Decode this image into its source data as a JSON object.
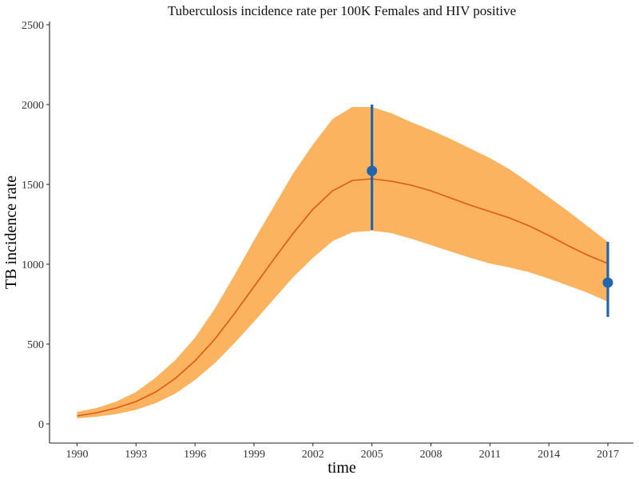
{
  "chart_data": {
    "type": "line",
    "title": "Tuberculosis incidence rate per 100K Females and HIV positive",
    "xlabel": "time",
    "ylabel": "TB incidence rate",
    "xlim": [
      1988.6,
      2018.3
    ],
    "ylim": [
      -120,
      2520
    ],
    "x_ticks": [
      "1990",
      "1993",
      "1996",
      "1999",
      "2002",
      "2005",
      "2008",
      "2011",
      "2014",
      "2017"
    ],
    "y_ticks": [
      "0",
      "500",
      "1000",
      "1500",
      "2000",
      "2500"
    ],
    "grid": false,
    "legend": "none",
    "series": [
      {
        "kind": "band",
        "color": "#fbb360",
        "x": [
          1990,
          1991,
          1992,
          1993,
          1994,
          1995,
          1996,
          1997,
          1998,
          1999,
          2000,
          2001,
          2002,
          2003,
          2004,
          2005,
          2006,
          2007,
          2008,
          2009,
          2010,
          2011,
          2012,
          2013,
          2014,
          2015,
          2016,
          2017
        ],
        "lower": [
          35,
          45,
          62,
          88,
          130,
          190,
          275,
          380,
          505,
          640,
          780,
          920,
          1040,
          1145,
          1200,
          1210,
          1195,
          1160,
          1120,
          1080,
          1040,
          1005,
          980,
          950,
          910,
          865,
          820,
          765
        ],
        "upper": [
          75,
          100,
          140,
          200,
          290,
          400,
          540,
          720,
          930,
          1150,
          1360,
          1570,
          1750,
          1910,
          1985,
          1985,
          1945,
          1890,
          1840,
          1785,
          1725,
          1665,
          1595,
          1510,
          1420,
          1330,
          1235,
          1140
        ]
      },
      {
        "kind": "line",
        "color": "#d95a1a",
        "x": [
          1990,
          1991,
          1992,
          1993,
          1994,
          1995,
          1996,
          1997,
          1998,
          1999,
          2000,
          2001,
          2002,
          2003,
          2004,
          2005,
          2006,
          2007,
          2008,
          2009,
          2010,
          2011,
          2012,
          2013,
          2014,
          2015,
          2016,
          2017
        ],
        "y": [
          50,
          70,
          100,
          140,
          200,
          285,
          395,
          530,
          690,
          860,
          1030,
          1195,
          1345,
          1460,
          1525,
          1535,
          1520,
          1495,
          1460,
          1415,
          1370,
          1330,
          1290,
          1240,
          1180,
          1115,
          1055,
          1005
        ]
      },
      {
        "kind": "point-errorbar",
        "color": "#2166ac",
        "x": [
          2005,
          2017
        ],
        "y": [
          1585,
          885
        ],
        "lower": [
          1215,
          670
        ],
        "upper": [
          2000,
          1140
        ]
      }
    ]
  }
}
